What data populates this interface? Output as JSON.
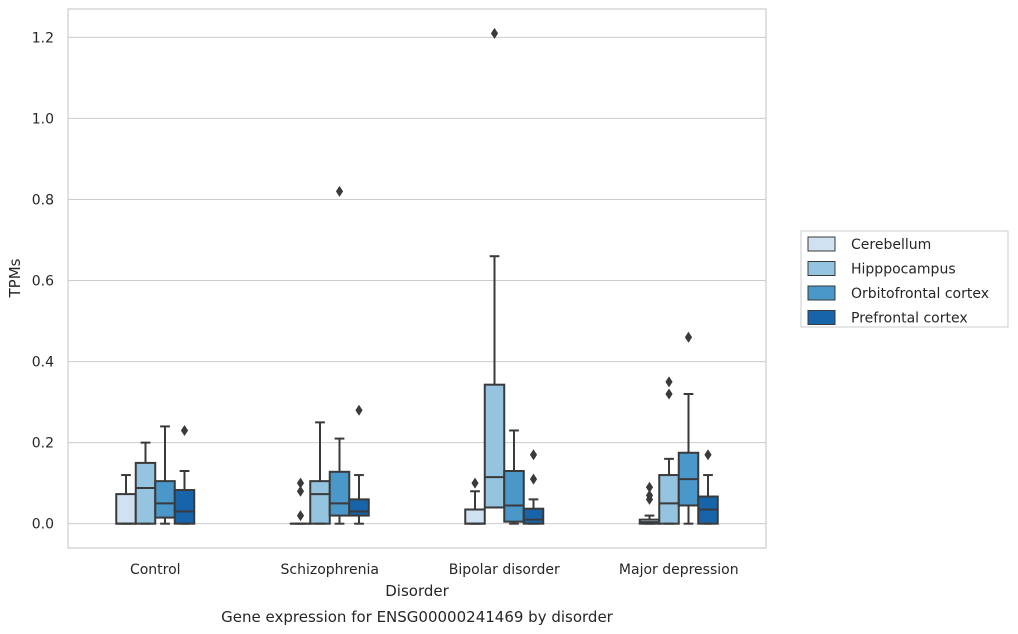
{
  "chart_data": {
    "type": "box",
    "title": "Gene expression for ENSG00000241469 by disorder",
    "xlabel": "Disorder",
    "ylabel": "TPMs",
    "ylim": [
      -0.06,
      1.27
    ],
    "yticks": [
      0.0,
      0.2,
      0.4,
      0.6,
      0.8,
      1.0,
      1.2
    ],
    "ytick_labels": [
      "0.0",
      "0.2",
      "0.4",
      "0.6",
      "0.8",
      "1.0",
      "1.2"
    ],
    "categories": [
      "Control",
      "Schizophrenia",
      "Bipolar disorder",
      "Major depression"
    ],
    "grid": "horizontal",
    "legend_position": "right-outside",
    "series": [
      {
        "name": "Cerebellum",
        "color": "#d0e1f2",
        "boxes": [
          {
            "whislo": 0.0,
            "q1": 0.0,
            "med": 0.0,
            "q3": 0.073,
            "whishi": 0.12,
            "fliers": []
          },
          {
            "whislo": 0.0,
            "q1": 0.0,
            "med": 0.0,
            "q3": 0.0,
            "whishi": 0.0,
            "fliers": [
              0.1,
              0.08,
              0.02
            ]
          },
          {
            "whislo": 0.0,
            "q1": 0.0,
            "med": 0.0,
            "q3": 0.035,
            "whishi": 0.08,
            "fliers": [
              0.1
            ]
          },
          {
            "whislo": 0.0,
            "q1": 0.0,
            "med": 0.004,
            "q3": 0.01,
            "whishi": 0.02,
            "fliers": [
              0.09,
              0.07,
              0.06
            ]
          }
        ]
      },
      {
        "name": "Hipppocampus",
        "color": "#94c4df",
        "boxes": [
          {
            "whislo": 0.0,
            "q1": 0.0,
            "med": 0.088,
            "q3": 0.15,
            "whishi": 0.2,
            "fliers": []
          },
          {
            "whislo": 0.0,
            "q1": 0.0,
            "med": 0.073,
            "q3": 0.105,
            "whishi": 0.25,
            "fliers": []
          },
          {
            "whislo": 0.04,
            "q1": 0.04,
            "med": 0.115,
            "q3": 0.343,
            "whishi": 0.66,
            "fliers": [
              1.21
            ]
          },
          {
            "whislo": 0.0,
            "q1": 0.0,
            "med": 0.05,
            "q3": 0.12,
            "whishi": 0.16,
            "fliers": [
              0.35,
              0.32
            ]
          }
        ]
      },
      {
        "name": "Orbitofrontal cortex",
        "color": "#4a98c9",
        "boxes": [
          {
            "whislo": 0.0,
            "q1": 0.015,
            "med": 0.05,
            "q3": 0.105,
            "whishi": 0.24,
            "fliers": []
          },
          {
            "whislo": 0.0,
            "q1": 0.02,
            "med": 0.05,
            "q3": 0.128,
            "whishi": 0.21,
            "fliers": [
              0.82
            ]
          },
          {
            "whislo": 0.0,
            "q1": 0.005,
            "med": 0.045,
            "q3": 0.13,
            "whishi": 0.23,
            "fliers": []
          },
          {
            "whislo": 0.0,
            "q1": 0.045,
            "med": 0.11,
            "q3": 0.175,
            "whishi": 0.32,
            "fliers": [
              0.46
            ]
          }
        ]
      },
      {
        "name": "Prefrontal cortex",
        "color": "#1764ab",
        "boxes": [
          {
            "whislo": 0.0,
            "q1": 0.0,
            "med": 0.03,
            "q3": 0.083,
            "whishi": 0.13,
            "fliers": [
              0.23
            ]
          },
          {
            "whislo": 0.0,
            "q1": 0.02,
            "med": 0.03,
            "q3": 0.06,
            "whishi": 0.12,
            "fliers": [
              0.28
            ]
          },
          {
            "whislo": 0.0,
            "q1": 0.0,
            "med": 0.01,
            "q3": 0.037,
            "whishi": 0.06,
            "fliers": [
              0.17,
              0.11
            ]
          },
          {
            "whislo": 0.0,
            "q1": 0.0,
            "med": 0.035,
            "q3": 0.067,
            "whishi": 0.12,
            "fliers": [
              0.17
            ]
          }
        ]
      }
    ]
  }
}
